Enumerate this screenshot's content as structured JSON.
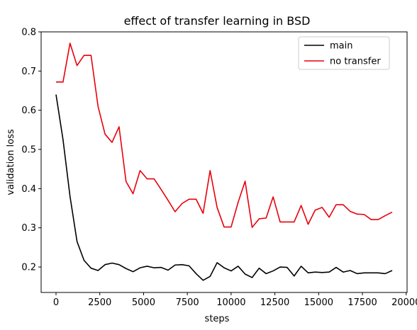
{
  "chart_data": {
    "type": "line",
    "title": "effect of transfer learning in BSD",
    "xlabel": "steps",
    "ylabel": "validation loss",
    "xlim": [
      -850,
      20050
    ],
    "ylim": [
      0.135,
      0.8
    ],
    "xticks": [
      0,
      2500,
      5000,
      7500,
      10000,
      12500,
      15000,
      17500,
      20000
    ],
    "yticks": [
      0.2,
      0.3,
      0.4,
      0.5,
      0.6,
      0.7,
      0.8
    ],
    "grid": false,
    "legend_position": "top-right",
    "series": [
      {
        "name": "main",
        "color": "#000000",
        "x": [
          0,
          400,
          800,
          1200,
          1600,
          2000,
          2400,
          2800,
          3200,
          3600,
          4000,
          4400,
          4800,
          5200,
          5600,
          6000,
          6400,
          6800,
          7200,
          7600,
          8000,
          8400,
          8800,
          9200,
          9600,
          10000,
          10400,
          10800,
          11200,
          11600,
          12000,
          12400,
          12800,
          13200,
          13600,
          14000,
          14400,
          14800,
          15200,
          15600,
          16000,
          16400,
          16800,
          17200,
          17600,
          18000,
          18400,
          18800,
          19200
        ],
        "values": [
          0.64,
          0.525,
          0.38,
          0.265,
          0.217,
          0.197,
          0.191,
          0.206,
          0.21,
          0.206,
          0.196,
          0.188,
          0.198,
          0.202,
          0.198,
          0.199,
          0.192,
          0.205,
          0.206,
          0.203,
          0.183,
          0.166,
          0.176,
          0.211,
          0.198,
          0.19,
          0.202,
          0.182,
          0.173,
          0.197,
          0.183,
          0.19,
          0.2,
          0.199,
          0.177,
          0.202,
          0.185,
          0.187,
          0.186,
          0.187,
          0.199,
          0.187,
          0.191,
          0.183,
          0.185,
          0.185,
          0.185,
          0.183,
          0.191
        ]
      },
      {
        "name": "no transfer",
        "color": "#e8000b",
        "x": [
          0,
          400,
          800,
          1200,
          1600,
          2000,
          2400,
          2800,
          3200,
          3600,
          4000,
          4400,
          4800,
          5200,
          5600,
          6000,
          6400,
          6800,
          7200,
          7600,
          8000,
          8400,
          8800,
          9200,
          9600,
          10000,
          10400,
          10800,
          11200,
          11600,
          12000,
          12400,
          12800,
          13200,
          13600,
          14000,
          14400,
          14800,
          15200,
          15600,
          16000,
          16400,
          16800,
          17200,
          17600,
          18000,
          18400,
          18800,
          19200
        ],
        "values": [
          0.672,
          0.672,
          0.771,
          0.714,
          0.74,
          0.74,
          0.61,
          0.539,
          0.518,
          0.558,
          0.418,
          0.387,
          0.446,
          0.425,
          0.425,
          0.398,
          0.37,
          0.341,
          0.362,
          0.373,
          0.373,
          0.337,
          0.446,
          0.352,
          0.302,
          0.302,
          0.365,
          0.419,
          0.301,
          0.323,
          0.325,
          0.379,
          0.315,
          0.315,
          0.315,
          0.357,
          0.309,
          0.345,
          0.352,
          0.327,
          0.359,
          0.359,
          0.342,
          0.335,
          0.334,
          0.321,
          0.321,
          0.331,
          0.34
        ]
      }
    ]
  }
}
